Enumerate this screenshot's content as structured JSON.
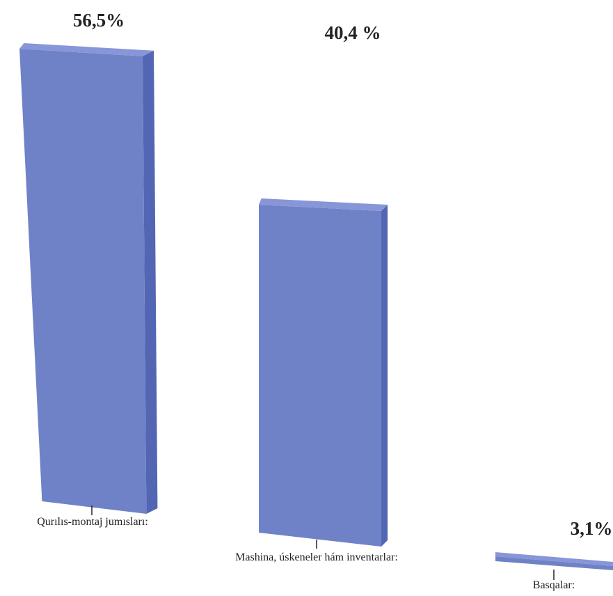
{
  "chart_data": {
    "type": "bar",
    "categories": [
      "Qurılıs-montaj jumısları:",
      "Mashina, úskeneler hám inventarlar:",
      "Basqalar:"
    ],
    "values": [
      56.5,
      40.4,
      3.1
    ],
    "data_labels": [
      "56,5%",
      "40,4 %",
      "3,1%"
    ],
    "title": "",
    "xlabel": "",
    "ylabel": "",
    "ylim": [
      0,
      60
    ],
    "grid": false,
    "legend": "none",
    "colors": {
      "bar_front": "#6f82c7",
      "bar_top": "#8796d8",
      "bar_side": "#5366b4",
      "text": "#222222"
    }
  }
}
